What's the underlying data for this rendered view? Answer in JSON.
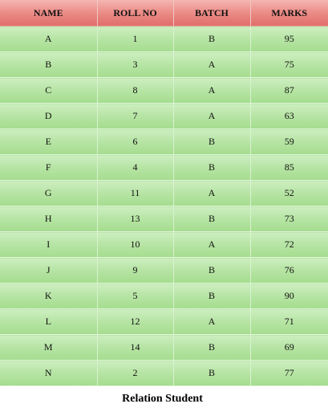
{
  "table": {
    "headers": [
      "NAME",
      "ROLL NO",
      "BATCH",
      "MARKS"
    ],
    "rows": [
      [
        "A",
        "1",
        "B",
        "95"
      ],
      [
        "B",
        "3",
        "A",
        "75"
      ],
      [
        "C",
        "8",
        "A",
        "87"
      ],
      [
        "D",
        "7",
        "A",
        "63"
      ],
      [
        "E",
        "6",
        "B",
        "59"
      ],
      [
        "F",
        "4",
        "B",
        "85"
      ],
      [
        "G",
        "11",
        "A",
        "52"
      ],
      [
        "H",
        "13",
        "B",
        "73"
      ],
      [
        "I",
        "10",
        "A",
        "72"
      ],
      [
        "J",
        "9",
        "B",
        "76"
      ],
      [
        "K",
        "5",
        "B",
        "90"
      ],
      [
        "L",
        "12",
        "A",
        "71"
      ],
      [
        "M",
        "14",
        "B",
        "69"
      ],
      [
        "N",
        "2",
        "B",
        "77"
      ]
    ]
  },
  "caption": "Relation Student",
  "colors": {
    "header_fill": "#ec8f8a",
    "row_fill": "#b8e5a6"
  }
}
